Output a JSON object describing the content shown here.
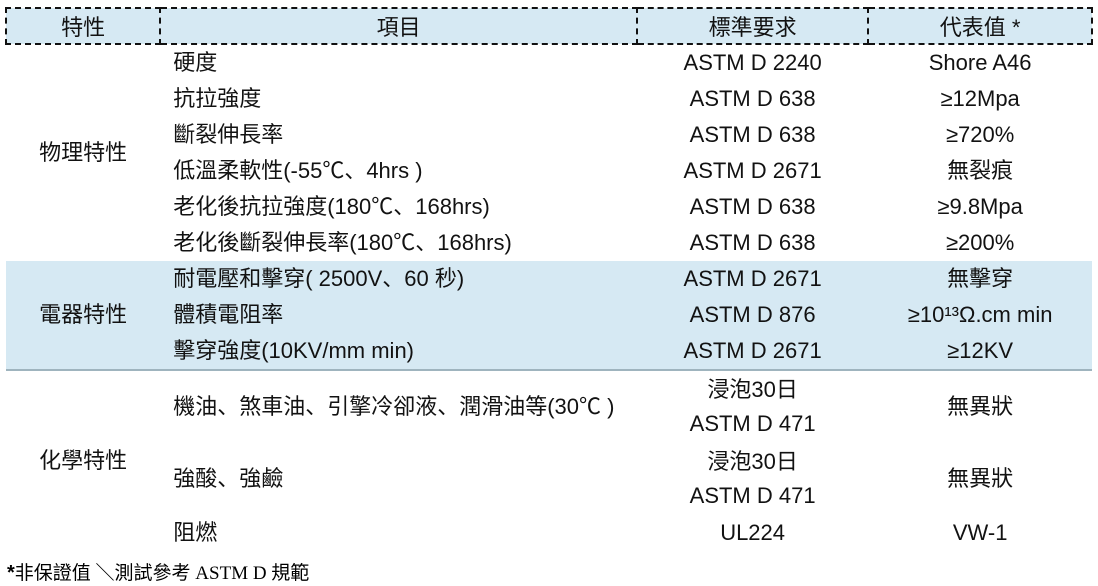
{
  "table": {
    "headers": [
      "特性",
      "項目",
      "標準要求",
      "代表值 *"
    ],
    "sections": [
      {
        "category": "物理特性",
        "highlight": false,
        "rows": [
          {
            "item": "硬度",
            "standard": [
              "ASTM D 2240"
            ],
            "value": "Shore A46"
          },
          {
            "item": "抗拉強度",
            "standard": [
              "ASTM D 638"
            ],
            "value": "≥12Mpa"
          },
          {
            "item": "斷裂伸長率",
            "standard": [
              "ASTM D 638"
            ],
            "value": "≥720%"
          },
          {
            "item": "低溫柔軟性(-55℃、4hrs )",
            "standard": [
              "ASTM D 2671"
            ],
            "value": "無裂痕"
          },
          {
            "item": "老化後抗拉強度(180℃、168hrs)",
            "standard": [
              "ASTM D 638"
            ],
            "value": "≥9.8Mpa"
          },
          {
            "item": "老化後斷裂伸長率(180℃、168hrs)",
            "standard": [
              "ASTM D 638"
            ],
            "value": "≥200%"
          }
        ]
      },
      {
        "category": "電器特性",
        "highlight": true,
        "rows": [
          {
            "item": "耐電壓和擊穿( 2500V、60  秒)",
            "standard": [
              "ASTM D 2671"
            ],
            "value": "無擊穿"
          },
          {
            "item": "體積電阻率",
            "standard": [
              "ASTM D 876"
            ],
            "value": "≥10¹³Ω.cm min"
          },
          {
            "item": "擊穿強度(10KV/mm min)",
            "standard": [
              "ASTM D 2671"
            ],
            "value": "≥12KV"
          }
        ]
      },
      {
        "category": "化學特性",
        "highlight": false,
        "rows": [
          {
            "item": "機油、煞車油、引擎冷卻液、潤滑油等(30℃ )",
            "standard": [
              "浸泡30日",
              "ASTM D 471"
            ],
            "value": "無異狀"
          },
          {
            "item": "強酸、強鹼",
            "standard": [
              "浸泡30日",
              "ASTM D 471"
            ],
            "value": "無異狀"
          },
          {
            "item": "阻燃",
            "standard": [
              "UL224"
            ],
            "value": "VW-1"
          }
        ]
      }
    ]
  },
  "footnote": {
    "star": "*",
    "text": "非保證值 ＼測試參考 ASTM D 規範"
  },
  "colors": {
    "header_bg": "#d6e9f3",
    "highlight_bg": "#d6e9f3",
    "section_divider": "#9fb4be"
  }
}
